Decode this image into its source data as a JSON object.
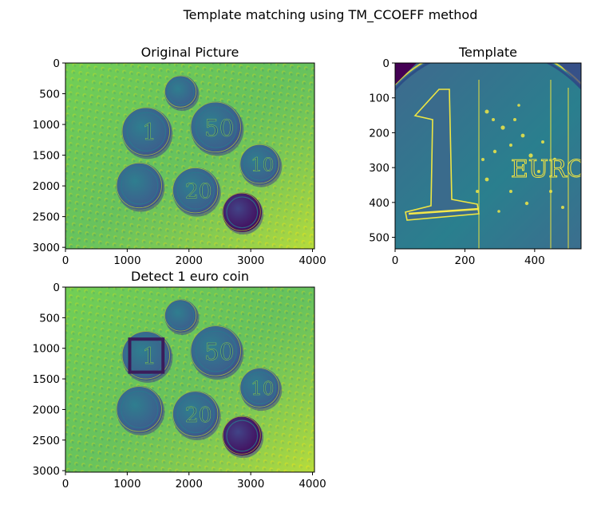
{
  "figure": {
    "suptitle": "Template matching using TM_CCOEFF method"
  },
  "colors": {
    "viridis_dark": "#440154",
    "viridis_blue": "#3b528b",
    "viridis_teal": "#21918c",
    "viridis_green": "#5ec962",
    "viridis_yellow": "#fde725",
    "box": "#3b1c5a"
  },
  "chart_data": [
    {
      "type": "image",
      "title": "Original Picture",
      "colormap": "viridis",
      "xlim": [
        0,
        4032
      ],
      "ylim": [
        3024,
        0
      ],
      "xticks": [
        0,
        1000,
        2000,
        3000,
        4000
      ],
      "yticks": [
        0,
        500,
        1000,
        1500,
        2000,
        2500,
        3000
      ],
      "coins": [
        {
          "label": "",
          "cx": 1870,
          "cy": 470,
          "r": 270
        },
        {
          "label": "1",
          "cx": 1310,
          "cy": 1120,
          "r": 400
        },
        {
          "label": "50",
          "cx": 2440,
          "cy": 1050,
          "r": 420
        },
        {
          "label": "10",
          "cx": 3150,
          "cy": 1650,
          "r": 330
        },
        {
          "label": "",
          "cx": 1200,
          "cy": 2000,
          "r": 380
        },
        {
          "label": "20",
          "cx": 2110,
          "cy": 2080,
          "r": 380
        },
        {
          "label": "",
          "cx": 2860,
          "cy": 2430,
          "r": 320
        }
      ]
    },
    {
      "type": "image",
      "title": "Template",
      "colormap": "viridis",
      "xlim": [
        0,
        533
      ],
      "ylim": [
        533,
        0
      ],
      "xticks": [
        0,
        200,
        400
      ],
      "yticks": [
        0,
        100,
        200,
        300,
        400,
        500
      ],
      "content": "zoomed 1 euro coin face with EURO lettering"
    },
    {
      "type": "image",
      "title": "Detect 1 euro coin",
      "colormap": "viridis",
      "xlim": [
        0,
        4032
      ],
      "ylim": [
        3024,
        0
      ],
      "xticks": [
        0,
        1000,
        2000,
        3000,
        4000
      ],
      "yticks": [
        0,
        500,
        1000,
        1500,
        2000,
        2500,
        3000
      ],
      "detection_box": {
        "x0": 1040,
        "y0": 850,
        "x1": 1580,
        "y1": 1390
      }
    }
  ]
}
